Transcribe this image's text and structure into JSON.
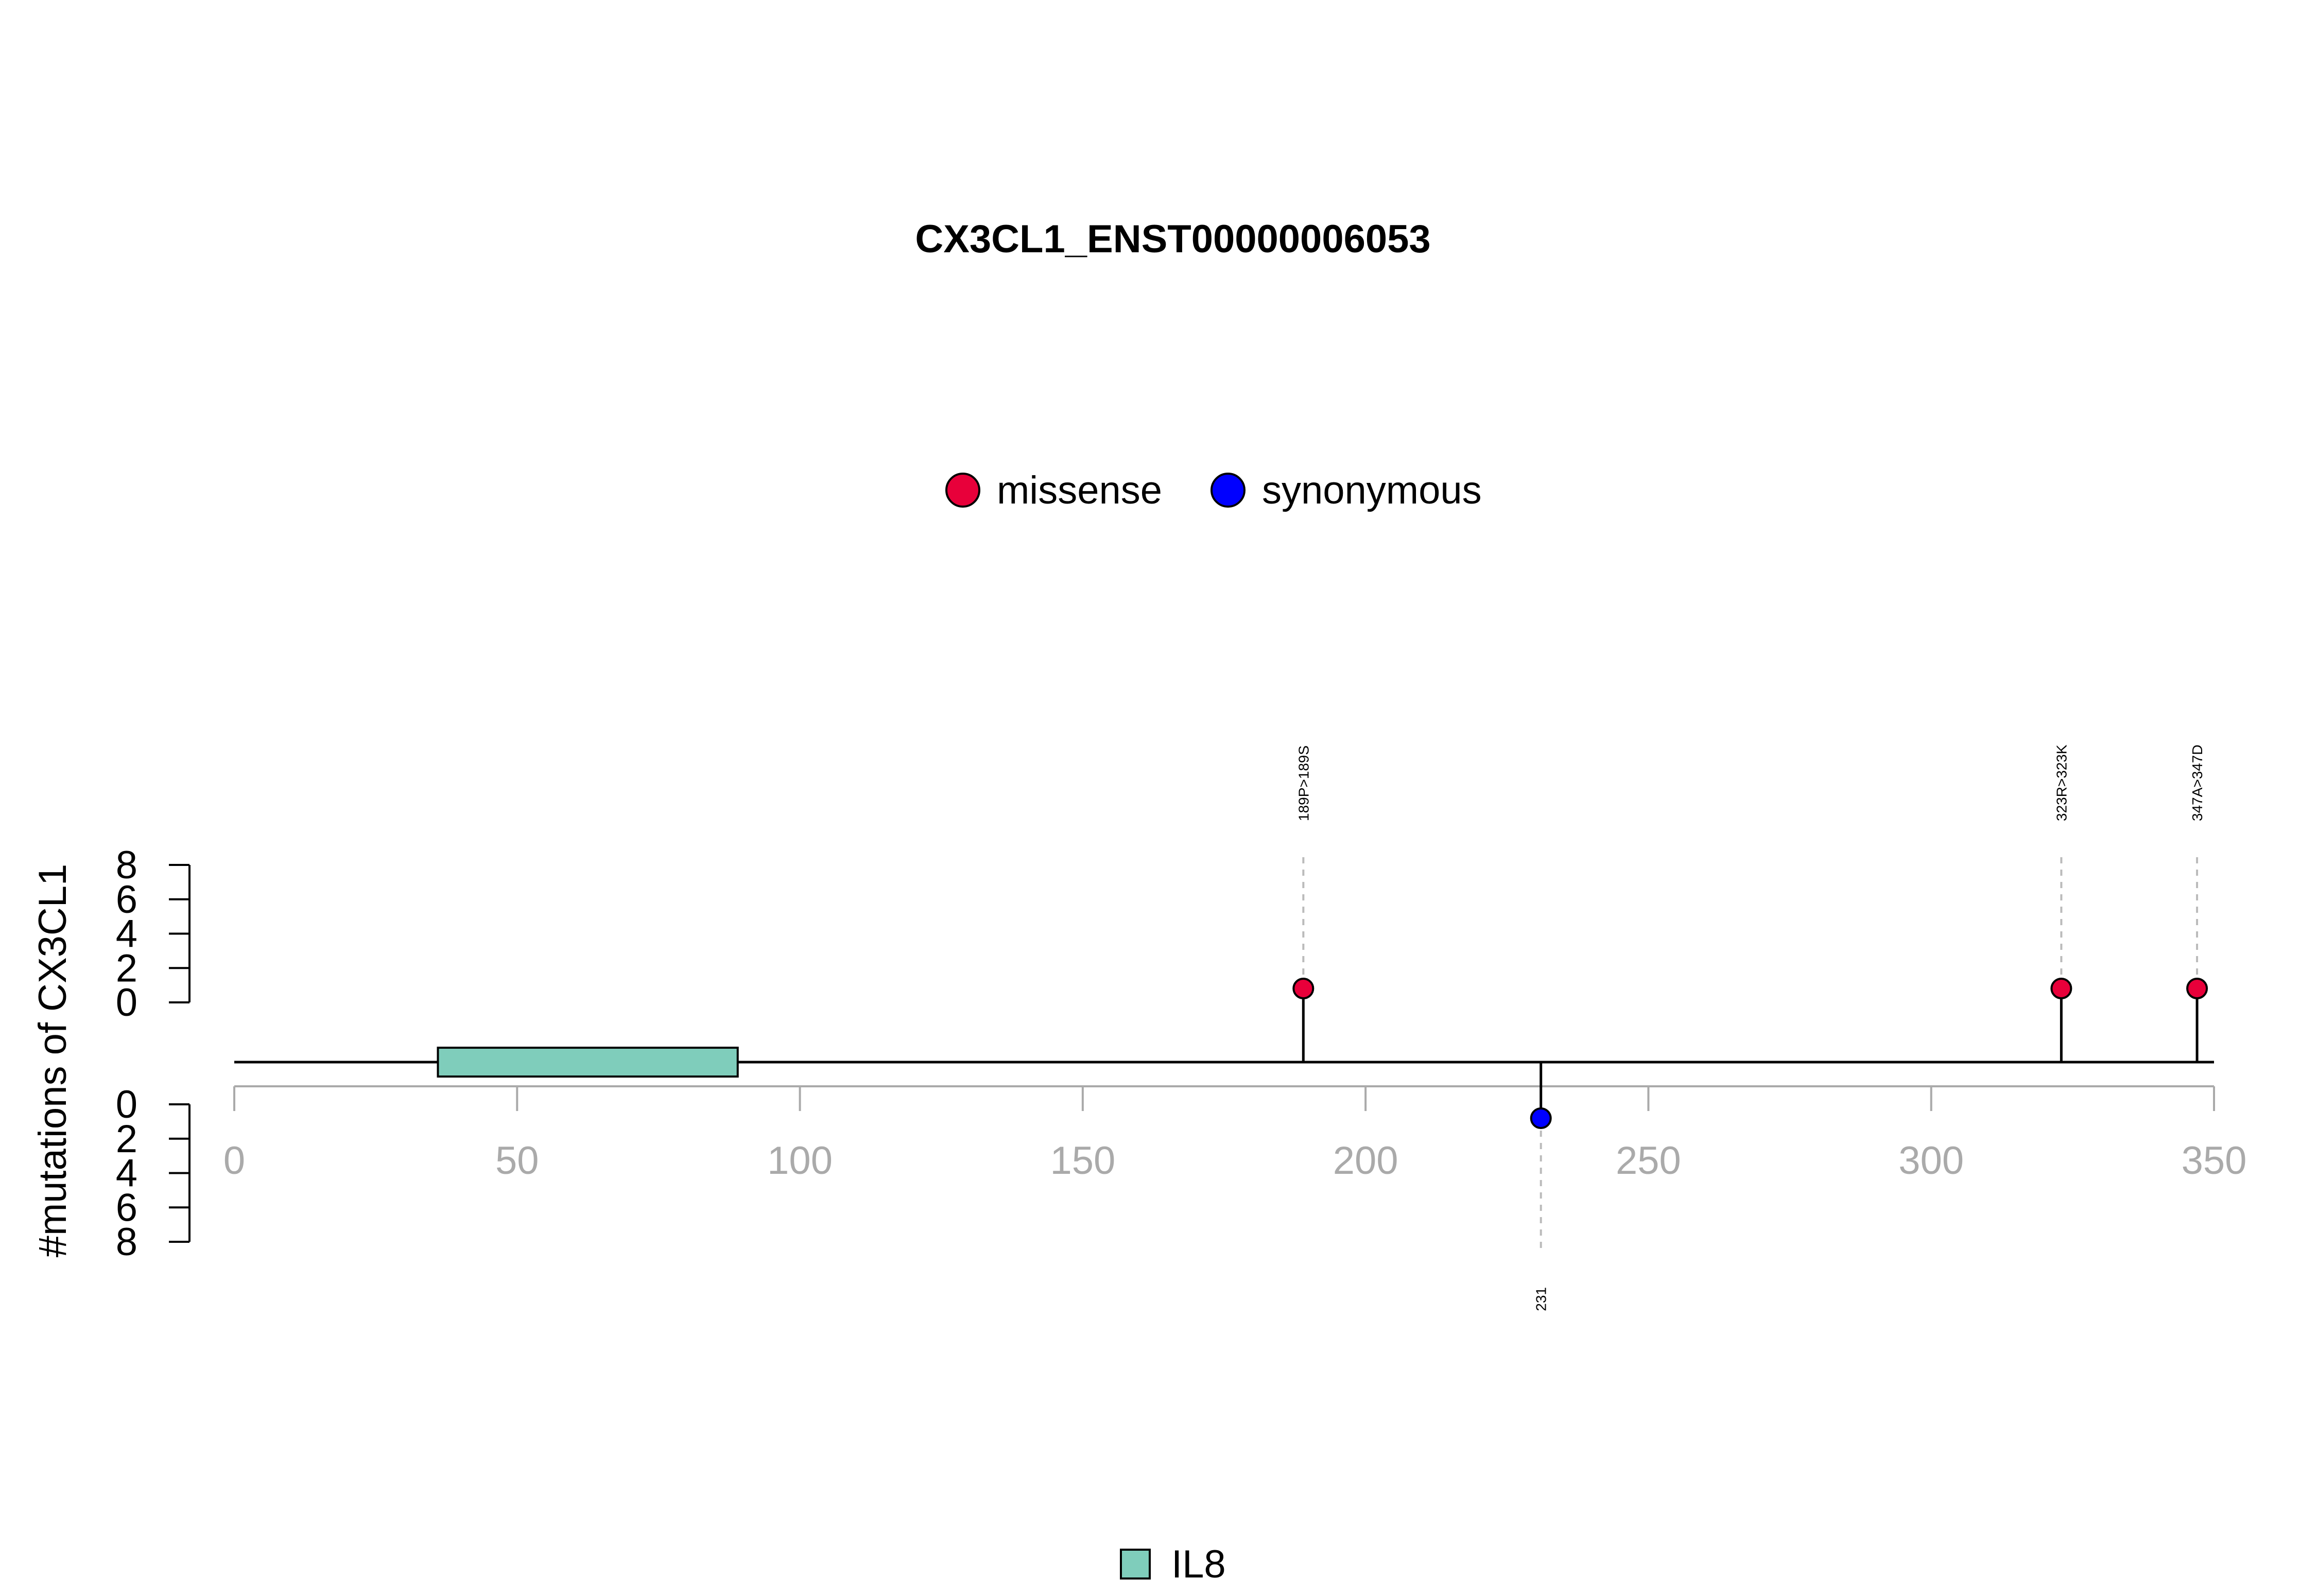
{
  "chart_data": {
    "type": "lollipop",
    "title": "CX3CL1_ENST00000006053",
    "ylabel": "#mutations of CX3CL1",
    "xlim": [
      0,
      350
    ],
    "x_ticks": [
      0,
      50,
      100,
      150,
      200,
      250,
      300,
      350
    ],
    "protein_length": 350,
    "y_upper_ticks": [
      0,
      2,
      4,
      6,
      8
    ],
    "y_lower_ticks": [
      0,
      2,
      4,
      6,
      8
    ],
    "legend": [
      {
        "label": "missense",
        "color": "#E8003A"
      },
      {
        "label": "synonymous",
        "color": "#0000FF"
      }
    ],
    "domains": [
      {
        "name": "IL8",
        "start": 36,
        "end": 89,
        "color": "#7FCDBB"
      }
    ],
    "domain_legend": [
      {
        "label": "IL8",
        "color": "#7FCDBB"
      }
    ],
    "mutations": [
      {
        "position": 189,
        "label": "189P>189S",
        "type": "missense",
        "count": 1,
        "strand": "up"
      },
      {
        "position": 323,
        "label": "323R>323K",
        "type": "missense",
        "count": 1,
        "strand": "up"
      },
      {
        "position": 347,
        "label": "347A>347D",
        "type": "missense",
        "count": 1,
        "strand": "up"
      },
      {
        "position": 231,
        "label": "231",
        "type": "synonymous",
        "count": 1,
        "strand": "down"
      }
    ],
    "colors": {
      "axis": "#AAAAAA",
      "backbone": "#000000",
      "guide": "#BBBBBB"
    }
  }
}
